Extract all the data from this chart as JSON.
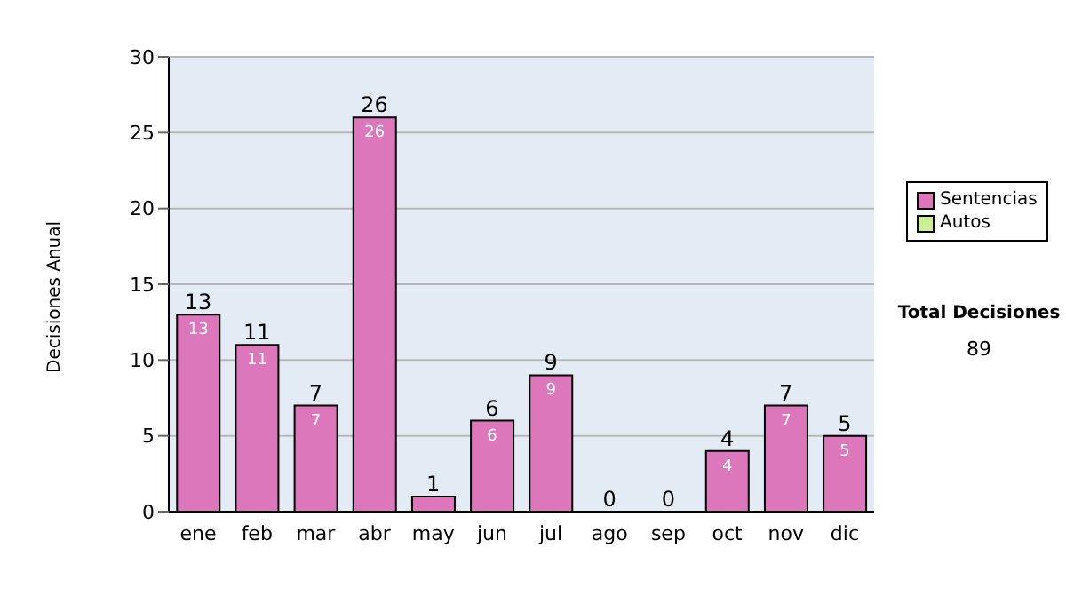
{
  "chart_data": {
    "type": "bar",
    "ylabel": "Decisiones Anual",
    "categories": [
      "ene",
      "feb",
      "mar",
      "abr",
      "may",
      "jun",
      "jul",
      "ago",
      "sep",
      "oct",
      "nov",
      "dic"
    ],
    "series": [
      {
        "name": "Sentencias",
        "color": "#dd77bb",
        "values": [
          13,
          11,
          7,
          26,
          1,
          6,
          9,
          0,
          0,
          4,
          7,
          5
        ],
        "value_labels": [
          "13",
          "11",
          "7",
          "26",
          null,
          "6",
          "9",
          null,
          null,
          "4",
          "7",
          "5"
        ]
      },
      {
        "name": "Autos",
        "color": "#ccee99",
        "values": [
          0,
          0,
          0,
          0,
          0,
          0,
          0,
          0,
          0,
          0,
          0,
          0
        ]
      }
    ],
    "stacked": true,
    "totals": [
      "13",
      "11",
      "7",
      "26",
      "1",
      "6",
      "9",
      "0",
      "0",
      "4",
      "7",
      "5"
    ],
    "ylim": [
      0,
      30
    ],
    "yticks": [
      0,
      5,
      10,
      15,
      20,
      25,
      30
    ],
    "grid": "y",
    "legend": "right",
    "annotations": [
      "Total Decisiones",
      "89"
    ]
  }
}
